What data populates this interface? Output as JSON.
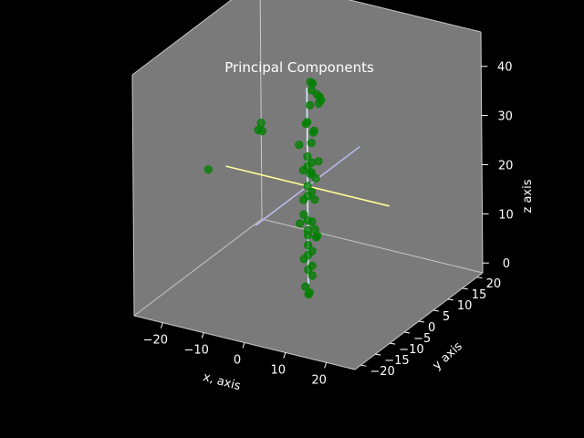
{
  "chart_data": {
    "type": "scatter",
    "projection": "3d",
    "title": "Principal Components",
    "xlabel": "x, axis",
    "ylabel": "y axis",
    "zlabel": "z axis",
    "xlim": [
      -27,
      27
    ],
    "ylim": [
      -22,
      22
    ],
    "zlim": [
      -2,
      47
    ],
    "xticks": [
      "−20",
      "−10",
      "0",
      "10",
      "20"
    ],
    "yticks": [
      "−20",
      "−15",
      "−10",
      "−5",
      "0",
      "5",
      "10",
      "15",
      "20"
    ],
    "zticks": [
      "0",
      "10",
      "20",
      "30",
      "40"
    ],
    "grid": false,
    "colors": {
      "background": "#000000",
      "pane": "#7a7a7a",
      "pane_edge": "#c8c8c8",
      "points": "#008000",
      "text": "#ffffff",
      "component_1": "#ffff99",
      "component_2": "#b8b8e8",
      "component_3": "#d8f0ff"
    },
    "series": [
      {
        "type": "scatter",
        "points": [
          [
            -20,
            -6,
            22
          ],
          [
            -12,
            0,
            29
          ],
          [
            -11,
            0,
            29
          ],
          [
            -12,
            1,
            30
          ],
          [
            -1,
            3,
            38
          ],
          [
            0,
            2,
            40
          ],
          [
            -2,
            4,
            39
          ],
          [
            1,
            3,
            37
          ],
          [
            0,
            1,
            36
          ],
          [
            1,
            2,
            38
          ],
          [
            2,
            2,
            37
          ],
          [
            0,
            4,
            35
          ],
          [
            -1,
            1,
            32
          ],
          [
            0,
            0,
            33
          ],
          [
            1,
            1,
            31
          ],
          [
            0,
            2,
            30
          ],
          [
            1,
            0,
            29
          ],
          [
            -2,
            0,
            28
          ],
          [
            0,
            0,
            26
          ],
          [
            1,
            0,
            25
          ],
          [
            2,
            1,
            25
          ],
          [
            0,
            0,
            24
          ],
          [
            -1,
            0,
            23
          ],
          [
            1,
            0,
            23
          ],
          [
            0,
            1,
            22
          ],
          [
            2,
            0,
            22
          ],
          [
            0,
            0,
            20
          ],
          [
            1,
            0,
            19
          ],
          [
            0,
            0,
            18
          ],
          [
            -1,
            0,
            17
          ],
          [
            1,
            1,
            17
          ],
          [
            -1,
            0,
            14
          ],
          [
            0,
            0,
            13
          ],
          [
            1,
            0,
            13
          ],
          [
            -2,
            0,
            12
          ],
          [
            0,
            0,
            11
          ],
          [
            1,
            1,
            11
          ],
          [
            2,
            0,
            10
          ],
          [
            0,
            0,
            10
          ],
          [
            3,
            -1,
            11
          ],
          [
            0,
            0,
            8
          ],
          [
            1,
            0,
            7
          ],
          [
            0,
            0,
            6
          ],
          [
            -1,
            0,
            5
          ],
          [
            1,
            0,
            4
          ],
          [
            0,
            0,
            3
          ],
          [
            1,
            0,
            2
          ],
          [
            0,
            -1,
            0
          ],
          [
            1,
            -1,
            -1
          ],
          [
            0,
            0,
            -2
          ]
        ]
      }
    ],
    "components": [
      {
        "from": [
          -20,
          0,
          20
        ],
        "to": [
          20,
          0,
          20
        ]
      },
      {
        "from": [
          0,
          -18,
          20
        ],
        "to": [
          0,
          18,
          20
        ]
      },
      {
        "from": [
          0,
          0,
          0
        ],
        "to": [
          0,
          0,
          40
        ]
      }
    ]
  }
}
